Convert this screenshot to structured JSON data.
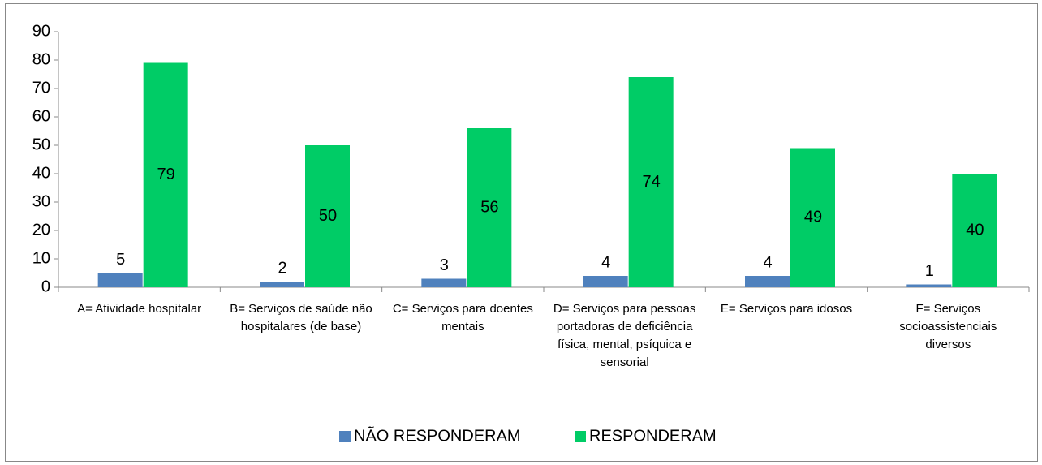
{
  "chart_data": {
    "type": "bar",
    "categories": [
      "A= Atividade hospitalar",
      "B= Serviços de saúde não hospitalares (de base)",
      "C= Serviços para doentes mentais",
      "D= Serviços para pessoas portadoras de deficiência física, mental, psíquica e sensorial",
      "E= Serviços para idosos",
      "F= Serviços socioassistenciais diversos"
    ],
    "series": [
      {
        "name": "NÃO RESPONDERAM",
        "color": "#4f81bd",
        "values": [
          5,
          2,
          3,
          4,
          4,
          1
        ]
      },
      {
        "name": "RESPONDERAM",
        "color": "#00cc66",
        "values": [
          79,
          50,
          56,
          74,
          49,
          40
        ]
      }
    ],
    "ylim": [
      0,
      90
    ],
    "yticks": [
      0,
      10,
      20,
      30,
      40,
      50,
      60,
      70,
      80,
      90
    ],
    "grid": false,
    "legend": "bottom"
  }
}
